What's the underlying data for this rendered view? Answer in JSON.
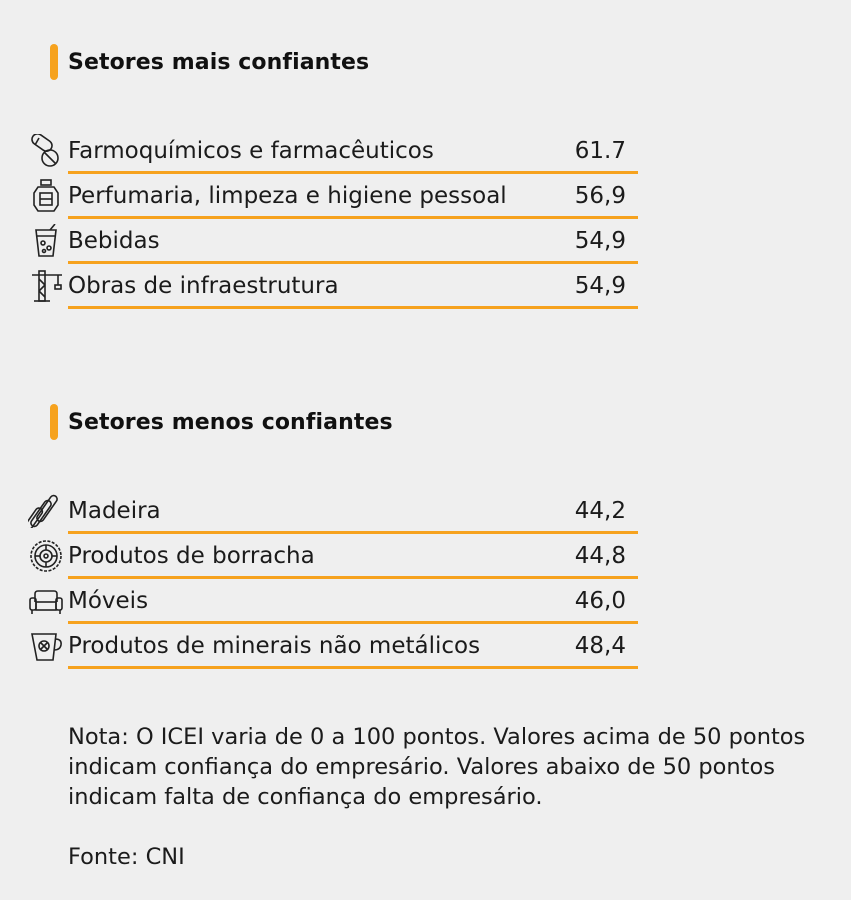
{
  "chart_data": [
    {
      "type": "table",
      "title": "Setores mais confiantes",
      "rows": [
        {
          "label": "Farmoquímicos e farmacêuticos",
          "value": "61.7",
          "icon": "pills-icon"
        },
        {
          "label": "Perfumaria, limpeza e higiene pessoal",
          "value": "56,9",
          "icon": "perfume-bottle-icon"
        },
        {
          "label": "Bebidas",
          "value": "54,9",
          "icon": "drink-glass-icon"
        },
        {
          "label": "Obras de infraestrutura",
          "value": "54,9",
          "icon": "crane-icon"
        }
      ]
    },
    {
      "type": "table",
      "title": "Setores menos confiantes",
      "rows": [
        {
          "label": "Madeira",
          "value": "44,2",
          "icon": "wood-logs-icon"
        },
        {
          "label": "Produtos de borracha",
          "value": "44,8",
          "icon": "tire-icon"
        },
        {
          "label": "Móveis",
          "value": "46,0",
          "icon": "sofa-icon"
        },
        {
          "label": "Produtos de minerais não metálicos",
          "value": "48,4",
          "icon": "ceramic-mug-icon"
        }
      ]
    }
  ],
  "footer": {
    "note_line1": "Nota: O ICEI varia de 0 a 100 pontos. Valores acima de 50 pontos",
    "note_line2": "indicam confiança do empresário. Valores abaixo de 50 pontos",
    "note_line3": "indicam falta de confiança do empresário.",
    "source": "Fonte: CNI"
  },
  "colors": {
    "accent": "#f6a21e",
    "background": "#efefef",
    "text": "#1b1b1b"
  }
}
